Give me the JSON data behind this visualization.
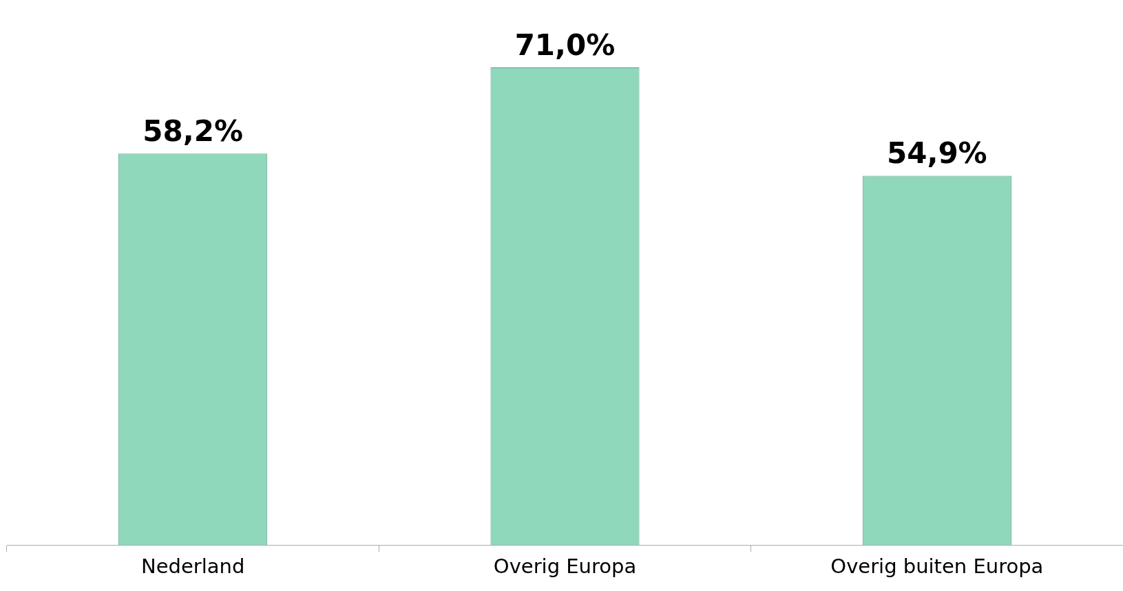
{
  "chart_data": {
    "type": "bar",
    "categories": [
      "Nederland",
      "Overig Europa",
      "Overig buiten Europa"
    ],
    "values": [
      58.2,
      71.0,
      54.9
    ],
    "value_labels": [
      "58,2%",
      "71,0%",
      "54,9%"
    ],
    "color": "#8fd8bb",
    "grid": false,
    "legend": false
  }
}
